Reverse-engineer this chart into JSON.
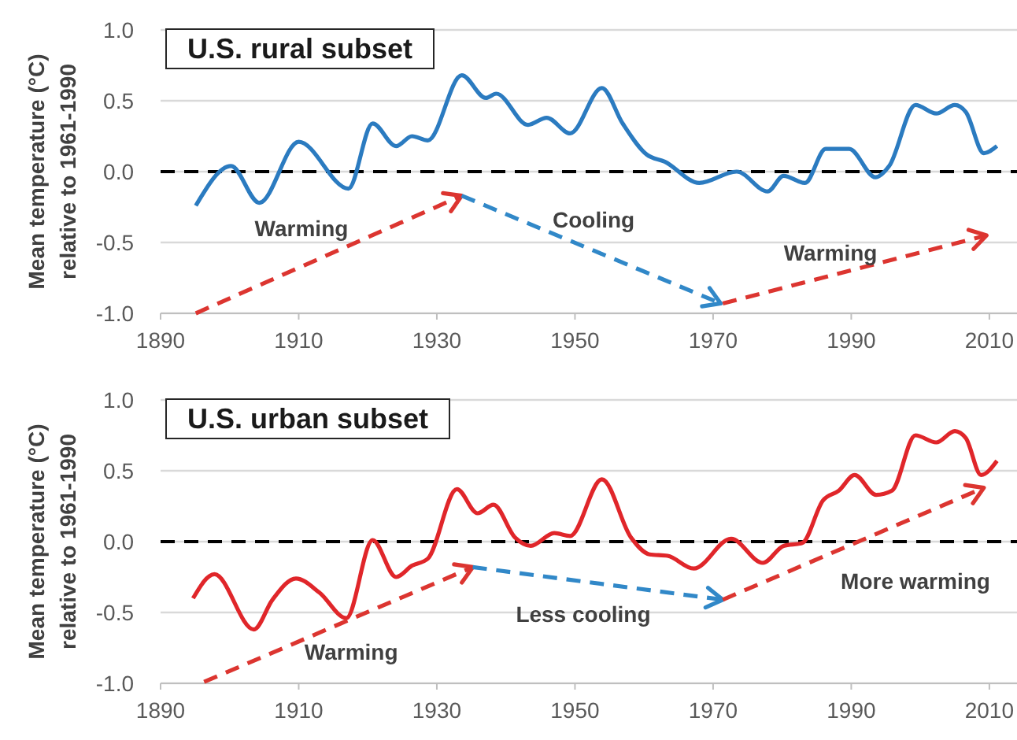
{
  "chart_data": [
    {
      "type": "line",
      "title": "U.S. rural subset",
      "ylabel": "Mean temperature (°C)\nrelative to 1961-1990",
      "xlim": [
        1890,
        2014
      ],
      "xticks": [
        1890,
        1910,
        1930,
        1950,
        1970,
        1990,
        2010
      ],
      "ylim": [
        -1,
        1
      ],
      "yticks": [
        {
          "value": -1,
          "label": "-1.0"
        },
        {
          "value": -0.5,
          "label": "-0.5"
        },
        {
          "value": 0,
          "label": "0.0"
        },
        {
          "value": 0.5,
          "label": "0.5"
        },
        {
          "value": 1,
          "label": "1.0"
        }
      ],
      "grid": "y",
      "marker": "none",
      "line_style": "solid",
      "ref_lines": [
        {
          "axis": "y",
          "value": 0,
          "color": "#000000",
          "line_style": "dashed"
        }
      ],
      "series": [
        {
          "color": "#2b7bc0",
          "x": [
            1895.1,
            1900.2,
            1904.3,
            1910,
            1917.2,
            1920.7,
            1924.1,
            1926.4,
            1928.7,
            1933.6,
            1937.1,
            1938.6,
            1943.2,
            1945.9,
            1949.3,
            1953.9,
            1956.9,
            1960.4,
            1963,
            1968,
            1973.4,
            1977.9,
            1980.2,
            1983.3,
            1986.3,
            1989.7,
            1993.5,
            1995.5,
            1999.3,
            2002.3,
            2005,
            2006.6,
            2009.2,
            2011.1
          ],
          "values": [
            -0.24,
            0.04,
            -0.22,
            0.21,
            -0.12,
            0.34,
            0.18,
            0.25,
            0.22,
            0.68,
            0.52,
            0.55,
            0.33,
            0.38,
            0.27,
            0.59,
            0.34,
            0.12,
            0.07,
            -0.08,
            0.0,
            -0.14,
            -0.03,
            -0.08,
            0.16,
            0.16,
            -0.04,
            0.04,
            0.47,
            0.41,
            0.47,
            0.42,
            0.13,
            0.18
          ]
        }
      ],
      "annotations": [
        "Warming",
        "Cooling",
        "Warming"
      ]
    },
    {
      "type": "line",
      "title": "U.S. urban subset",
      "ylabel": "Mean temperature (°C)\nrelative to 1961-1990",
      "xlim": [
        1890,
        2014
      ],
      "xticks": [
        1890,
        1910,
        1930,
        1950,
        1970,
        1990,
        2010
      ],
      "ylim": [
        -1,
        1
      ],
      "yticks": [
        {
          "value": -1,
          "label": "-1.0"
        },
        {
          "value": -0.5,
          "label": "-0.5"
        },
        {
          "value": 0,
          "label": "0.0"
        },
        {
          "value": 0.5,
          "label": "0.5"
        },
        {
          "value": 1,
          "label": "1.0"
        }
      ],
      "grid": "y",
      "marker": "none",
      "line_style": "solid",
      "ref_lines": [
        {
          "axis": "y",
          "value": 0,
          "color": "#000000",
          "line_style": "dashed"
        }
      ],
      "series": [
        {
          "color": "#e0262a",
          "x": [
            1894.7,
            1897.8,
            1903.5,
            1906.2,
            1909.6,
            1913,
            1916.9,
            1920.7,
            1924.1,
            1926.4,
            1928.7,
            1932.9,
            1935.9,
            1938.2,
            1941.3,
            1943.6,
            1947,
            1949.3,
            1953.9,
            1958.1,
            1960.8,
            1963.4,
            1967.2,
            1972.6,
            1977.2,
            1980.2,
            1982.9,
            1985.9,
            1988.2,
            1990.5,
            1993.6,
            1995.9,
            1999.3,
            2002.3,
            2005,
            2006.6,
            2008.8,
            2011.1
          ],
          "values": [
            -0.4,
            -0.23,
            -0.62,
            -0.41,
            -0.26,
            -0.36,
            -0.54,
            0.01,
            -0.25,
            -0.17,
            -0.12,
            0.37,
            0.2,
            0.26,
            0.03,
            -0.03,
            0.06,
            0.04,
            0.44,
            0.03,
            -0.09,
            -0.1,
            -0.19,
            0.02,
            -0.15,
            -0.03,
            -0.01,
            0.29,
            0.36,
            0.47,
            0.33,
            0.36,
            0.75,
            0.7,
            0.78,
            0.73,
            0.47,
            0.57
          ]
        }
      ],
      "annotations": [
        "Warming",
        "Less cooling",
        "More warming"
      ]
    }
  ]
}
